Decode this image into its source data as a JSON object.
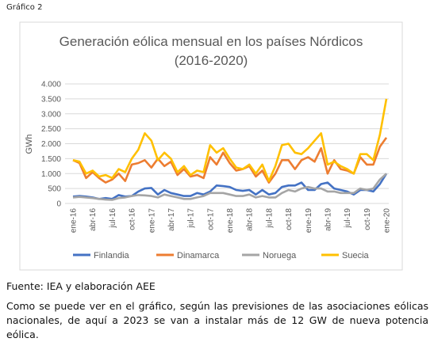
{
  "caption": "Gráfico 2",
  "chart_data": {
    "type": "line",
    "title": "Generación eólica mensual en los países Nórdicos",
    "subtitle": "(2016-2020)",
    "y_label": "GWh",
    "categories": [
      "ene-16",
      null,
      null,
      "abr-16",
      null,
      null,
      "jul-16",
      null,
      null,
      "oct-16",
      null,
      null,
      "ene-17",
      null,
      null,
      "abr-17",
      null,
      null,
      "jul-17",
      null,
      null,
      "oct-17",
      null,
      null,
      "ene-18",
      null,
      null,
      "abr-18",
      null,
      null,
      "jul-18",
      null,
      null,
      "oct-18",
      null,
      null,
      "ene-19",
      null,
      null,
      "abr-19",
      null,
      null,
      "jul-19",
      null,
      null,
      "oct-19",
      null,
      null,
      "ene-20"
    ],
    "series": [
      {
        "name": "Finlandia",
        "color": "#4472c4",
        "values": [
          230,
          250,
          230,
          200,
          150,
          180,
          150,
          280,
          230,
          250,
          400,
          500,
          520,
          300,
          450,
          350,
          300,
          250,
          250,
          350,
          300,
          400,
          600,
          580,
          550,
          450,
          420,
          450,
          300,
          450,
          300,
          350,
          550,
          600,
          600,
          700,
          450,
          450,
          650,
          700,
          500,
          450,
          400,
          300,
          450,
          450,
          400,
          650,
          1000
        ]
      },
      {
        "name": "Dinamarca",
        "color": "#ed7d31",
        "values": [
          1450,
          1350,
          850,
          1050,
          850,
          700,
          800,
          1000,
          750,
          1300,
          1350,
          1450,
          1200,
          1500,
          1250,
          1400,
          950,
          1150,
          900,
          950,
          850,
          1550,
          1300,
          1700,
          1350,
          1100,
          1150,
          1250,
          900,
          1100,
          700,
          1000,
          1450,
          1450,
          1150,
          1450,
          1550,
          1400,
          1850,
          1000,
          1450,
          1150,
          1100,
          1000,
          1550,
          1300,
          1300,
          1900,
          2200
        ]
      },
      {
        "name": "Noruega",
        "color": "#a5a5a5",
        "values": [
          200,
          220,
          200,
          180,
          150,
          130,
          120,
          180,
          200,
          250,
          280,
          270,
          250,
          200,
          300,
          250,
          200,
          150,
          150,
          200,
          250,
          350,
          350,
          350,
          300,
          250,
          250,
          300,
          200,
          250,
          200,
          200,
          350,
          450,
          400,
          500,
          550,
          500,
          500,
          400,
          400,
          350,
          350,
          350,
          500,
          450,
          500,
          800,
          1000
        ]
      },
      {
        "name": "Suecia",
        "color": "#ffc000",
        "values": [
          1450,
          1400,
          1000,
          1100,
          900,
          950,
          850,
          1150,
          1050,
          1500,
          1800,
          2350,
          2100,
          1450,
          1700,
          1500,
          1050,
          1250,
          950,
          1100,
          1050,
          1950,
          1700,
          1850,
          1500,
          1200,
          1150,
          1300,
          1000,
          1300,
          750,
          1250,
          1950,
          2000,
          1700,
          1650,
          1850,
          2100,
          2350,
          1300,
          1400,
          1250,
          1150,
          1000,
          1650,
          1650,
          1450,
          2300,
          3500
        ]
      }
    ],
    "ylim": [
      0,
      4000
    ],
    "yticks": [
      0,
      {
        "value": 500,
        "label": "500"
      },
      {
        "value": 1000,
        "label": "1.000"
      },
      {
        "value": 1500,
        "label": "1.500"
      },
      {
        "value": 2000,
        "label": "2.000"
      },
      {
        "value": 2500,
        "label": "2.500"
      },
      {
        "value": 3000,
        "label": "3.000"
      },
      {
        "value": 3500,
        "label": "3.500"
      },
      {
        "value": 4000,
        "label": "4.000"
      }
    ],
    "grid": true,
    "legend": "bottom"
  },
  "source": "Fuente: IEA y elaboración AEE",
  "paragraph": "Como se puede ver en el gráfico, según las previsiones de las asociaciones eólicas nacionales, de aquí a 2023 se van a instalar más de 12 GW de nueva potencia eólica."
}
